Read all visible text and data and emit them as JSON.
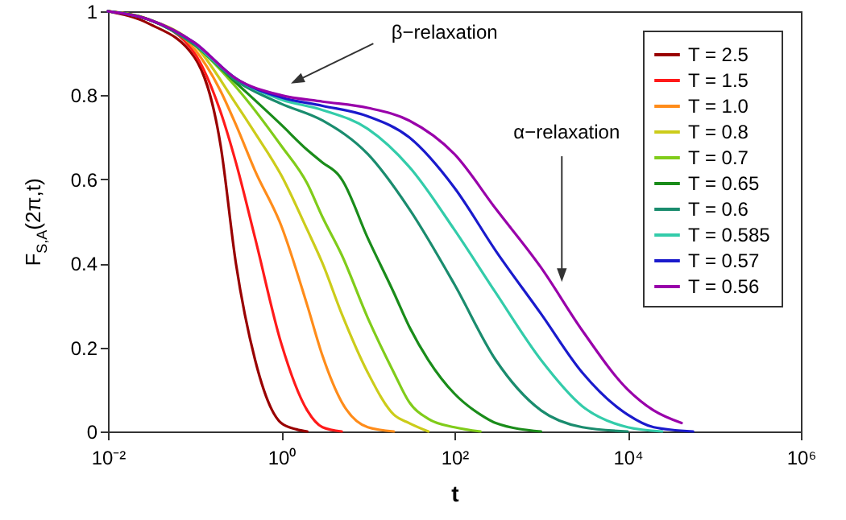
{
  "chart_data": {
    "type": "line",
    "xlabel": "t",
    "ylabel": "F$_{S,A}$(2π,t)",
    "log": "x",
    "xlim": [
      0.01,
      1000000
    ],
    "ylim": [
      0,
      1
    ],
    "xticks": [
      {
        "value": 0.01,
        "label": "10⁻²"
      },
      {
        "value": 1,
        "label": "10⁰"
      },
      {
        "value": 100,
        "label": "10²"
      },
      {
        "value": 10000,
        "label": "10⁴"
      },
      {
        "value": 1000000,
        "label": "10⁶"
      }
    ],
    "yticks": [
      0,
      0.2,
      0.4,
      0.6,
      0.8,
      1
    ],
    "legend": "top right",
    "line_style": "solid",
    "annotations": [
      "β−relaxation",
      "α−relaxation"
    ],
    "series": [
      {
        "name": "T = 2.5",
        "color": "#990000",
        "x": [
          0.01,
          0.03,
          0.1,
          0.2,
          0.3,
          0.5,
          1,
          1.5,
          2
        ],
        "values": [
          1,
          0.97,
          0.89,
          0.68,
          0.4,
          0.17,
          0.02,
          0.005,
          0
        ]
      },
      {
        "name": "T = 1.5",
        "color": "#ff1a1a",
        "x": [
          0.01,
          0.03,
          0.1,
          0.2,
          0.3,
          0.5,
          1,
          2,
          3,
          5
        ],
        "values": [
          1,
          0.98,
          0.9,
          0.76,
          0.64,
          0.46,
          0.21,
          0.05,
          0.01,
          0
        ]
      },
      {
        "name": "T = 1.0",
        "color": "#ff8c1a",
        "x": [
          0.01,
          0.03,
          0.1,
          0.2,
          0.3,
          0.5,
          1,
          2,
          3,
          5,
          10,
          20
        ],
        "values": [
          1,
          0.98,
          0.91,
          0.81,
          0.73,
          0.62,
          0.49,
          0.3,
          0.18,
          0.07,
          0.01,
          0
        ]
      },
      {
        "name": "T = 0.8",
        "color": "#cccc1a",
        "x": [
          0.01,
          0.03,
          0.1,
          0.3,
          0.5,
          1,
          2,
          3,
          5,
          10,
          20,
          30,
          50
        ],
        "values": [
          1,
          0.98,
          0.92,
          0.78,
          0.71,
          0.61,
          0.48,
          0.4,
          0.28,
          0.14,
          0.04,
          0.02,
          0
        ]
      },
      {
        "name": "T = 0.7",
        "color": "#80cc1a",
        "x": [
          0.01,
          0.03,
          0.1,
          0.3,
          1,
          2,
          3,
          5,
          10,
          20,
          30,
          50,
          100,
          200
        ],
        "values": [
          1,
          0.98,
          0.92,
          0.82,
          0.68,
          0.59,
          0.51,
          0.42,
          0.27,
          0.14,
          0.07,
          0.03,
          0.01,
          0
        ]
      },
      {
        "name": "T = 0.65",
        "color": "#1a8c1a",
        "x": [
          0.01,
          0.03,
          0.1,
          0.3,
          1,
          2,
          3,
          4.6,
          5,
          10,
          20,
          30,
          50,
          100,
          200,
          300,
          1000
        ],
        "values": [
          1,
          0.98,
          0.92,
          0.83,
          0.73,
          0.67,
          0.64,
          0.61,
          0.6,
          0.46,
          0.33,
          0.25,
          0.17,
          0.09,
          0.04,
          0.02,
          0
        ]
      },
      {
        "name": "T = 0.6",
        "color": "#1a8c6e",
        "x": [
          0.01,
          0.03,
          0.1,
          0.3,
          1,
          3,
          10,
          30,
          100,
          300,
          1000,
          3000,
          10000
        ],
        "values": [
          1,
          0.98,
          0.92,
          0.835,
          0.78,
          0.74,
          0.66,
          0.53,
          0.35,
          0.17,
          0.05,
          0.01,
          0
        ]
      },
      {
        "name": "T = 0.585",
        "color": "#33ccaa",
        "x": [
          0.1,
          0.3,
          1,
          3,
          10,
          30,
          100,
          300,
          1000,
          3000,
          10000,
          25000
        ],
        "values": [
          0.925,
          0.84,
          0.79,
          0.765,
          0.72,
          0.63,
          0.48,
          0.33,
          0.17,
          0.06,
          0.01,
          0
        ]
      },
      {
        "name": "T = 0.57",
        "color": "#1a1acc",
        "x": [
          0.01,
          0.03,
          0.1,
          0.3,
          1,
          3,
          10,
          30,
          100,
          300,
          1000,
          3000,
          10000,
          20000,
          57000
        ],
        "values": [
          1,
          0.98,
          0.925,
          0.84,
          0.795,
          0.775,
          0.75,
          0.7,
          0.58,
          0.43,
          0.28,
          0.14,
          0.04,
          0.01,
          0
        ]
      },
      {
        "name": "T = 0.56",
        "color": "#9900aa",
        "x": [
          0.01,
          0.03,
          0.1,
          0.3,
          1,
          3,
          10,
          30,
          100,
          300,
          1000,
          3000,
          10000,
          20000,
          42000
        ],
        "values": [
          1,
          0.98,
          0.925,
          0.84,
          0.8,
          0.785,
          0.77,
          0.74,
          0.66,
          0.53,
          0.39,
          0.24,
          0.1,
          0.05,
          0.02
        ]
      }
    ]
  }
}
